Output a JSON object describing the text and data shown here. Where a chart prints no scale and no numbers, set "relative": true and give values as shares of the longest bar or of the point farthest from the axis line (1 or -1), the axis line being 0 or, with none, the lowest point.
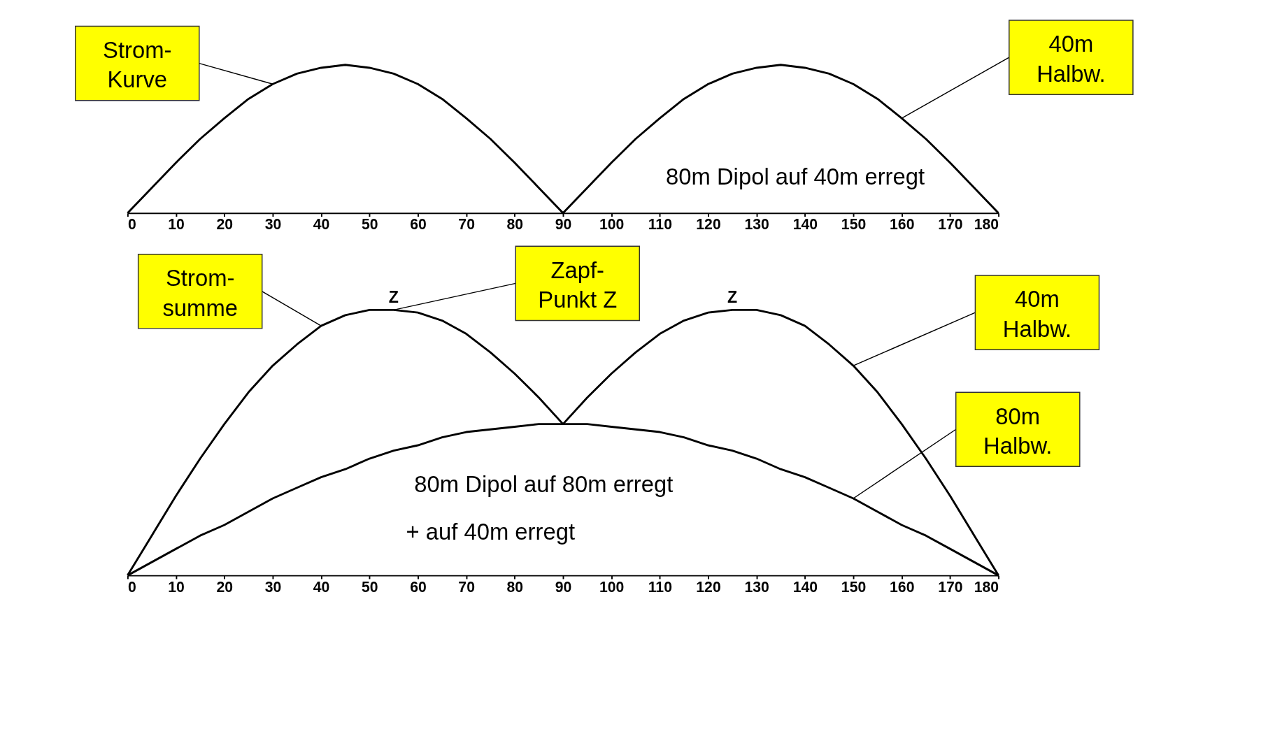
{
  "chart_data": [
    {
      "type": "line",
      "relative": true,
      "x": [
        0,
        5,
        10,
        15,
        20,
        25,
        30,
        35,
        40,
        45,
        50,
        55,
        60,
        65,
        70,
        75,
        80,
        85,
        90,
        95,
        100,
        105,
        110,
        115,
        120,
        125,
        130,
        135,
        140,
        145,
        150,
        155,
        160,
        165,
        170,
        175,
        180
      ],
      "series": [
        {
          "color": "#000000",
          "values": [
            0,
            0.17,
            0.34,
            0.5,
            0.64,
            0.77,
            0.87,
            0.94,
            0.98,
            1,
            0.98,
            0.94,
            0.87,
            0.77,
            0.64,
            0.5,
            0.34,
            0.17,
            0,
            0.17,
            0.34,
            0.5,
            0.64,
            0.77,
            0.87,
            0.94,
            0.98,
            1,
            0.98,
            0.94,
            0.87,
            0.77,
            0.64,
            0.5,
            0.34,
            0.17,
            0
          ]
        }
      ],
      "xlim": [
        0,
        180
      ],
      "xticks": [
        0,
        10,
        20,
        30,
        40,
        50,
        60,
        70,
        80,
        90,
        100,
        110,
        120,
        130,
        140,
        150,
        160,
        170,
        180
      ],
      "tick_labels": "x",
      "annotations": [
        {
          "text": "Strom-\nKurve",
          "x": 30,
          "y": 0.87
        },
        {
          "text": "40m\nHalbw.",
          "x": 160,
          "y": 0.64
        },
        "80m Dipol auf 40m erregt"
      ]
    },
    {
      "type": "line",
      "relative": true,
      "x": [
        0,
        5,
        10,
        15,
        20,
        25,
        30,
        35,
        40,
        45,
        50,
        55,
        60,
        65,
        70,
        75,
        80,
        85,
        90,
        95,
        100,
        105,
        110,
        115,
        120,
        125,
        130,
        135,
        140,
        145,
        150,
        155,
        160,
        165,
        170,
        175,
        180
      ],
      "series": [
        {
          "color": "#000000",
          "values": [
            0,
            0.15,
            0.3,
            0.44,
            0.57,
            0.69,
            0.79,
            0.87,
            0.94,
            0.98,
            1,
            1,
            0.99,
            0.96,
            0.91,
            0.84,
            0.76,
            0.67,
            0.57,
            0.67,
            0.76,
            0.84,
            0.91,
            0.96,
            0.99,
            1,
            1,
            0.98,
            0.94,
            0.87,
            0.79,
            0.69,
            0.57,
            0.44,
            0.3,
            0.15,
            0
          ]
        },
        {
          "color": "#000000",
          "values": [
            0,
            0.05,
            0.1,
            0.15,
            0.19,
            0.24,
            0.29,
            0.33,
            0.37,
            0.4,
            0.44,
            0.47,
            0.49,
            0.52,
            0.54,
            0.55,
            0.56,
            0.57,
            0.57,
            0.57,
            0.56,
            0.55,
            0.54,
            0.52,
            0.49,
            0.47,
            0.44,
            0.4,
            0.37,
            0.33,
            0.29,
            0.24,
            0.19,
            0.15,
            0.1,
            0.05,
            0
          ]
        }
      ],
      "xlim": [
        0,
        180
      ],
      "xticks": [
        0,
        10,
        20,
        30,
        40,
        50,
        60,
        70,
        80,
        90,
        100,
        110,
        120,
        130,
        140,
        150,
        160,
        170,
        180
      ],
      "tick_labels": "x",
      "annotations": [
        {
          "text": "Strom-\nsumme",
          "x": 40,
          "y": 0.94
        },
        {
          "text": "Z",
          "x": 55,
          "y": 1
        },
        {
          "text": "Z",
          "x": 125,
          "y": 1
        },
        {
          "text": "Zapf-\nPunkt Z",
          "x": 55,
          "y": 1
        },
        {
          "text": "40m\nHalbw.",
          "x": 150,
          "y": 0.79
        },
        {
          "text": "80m\nHalbw.",
          "x": 150,
          "y": 0.29
        },
        "80m Dipol auf 80m erregt",
        "+ auf 40m erregt"
      ]
    }
  ]
}
